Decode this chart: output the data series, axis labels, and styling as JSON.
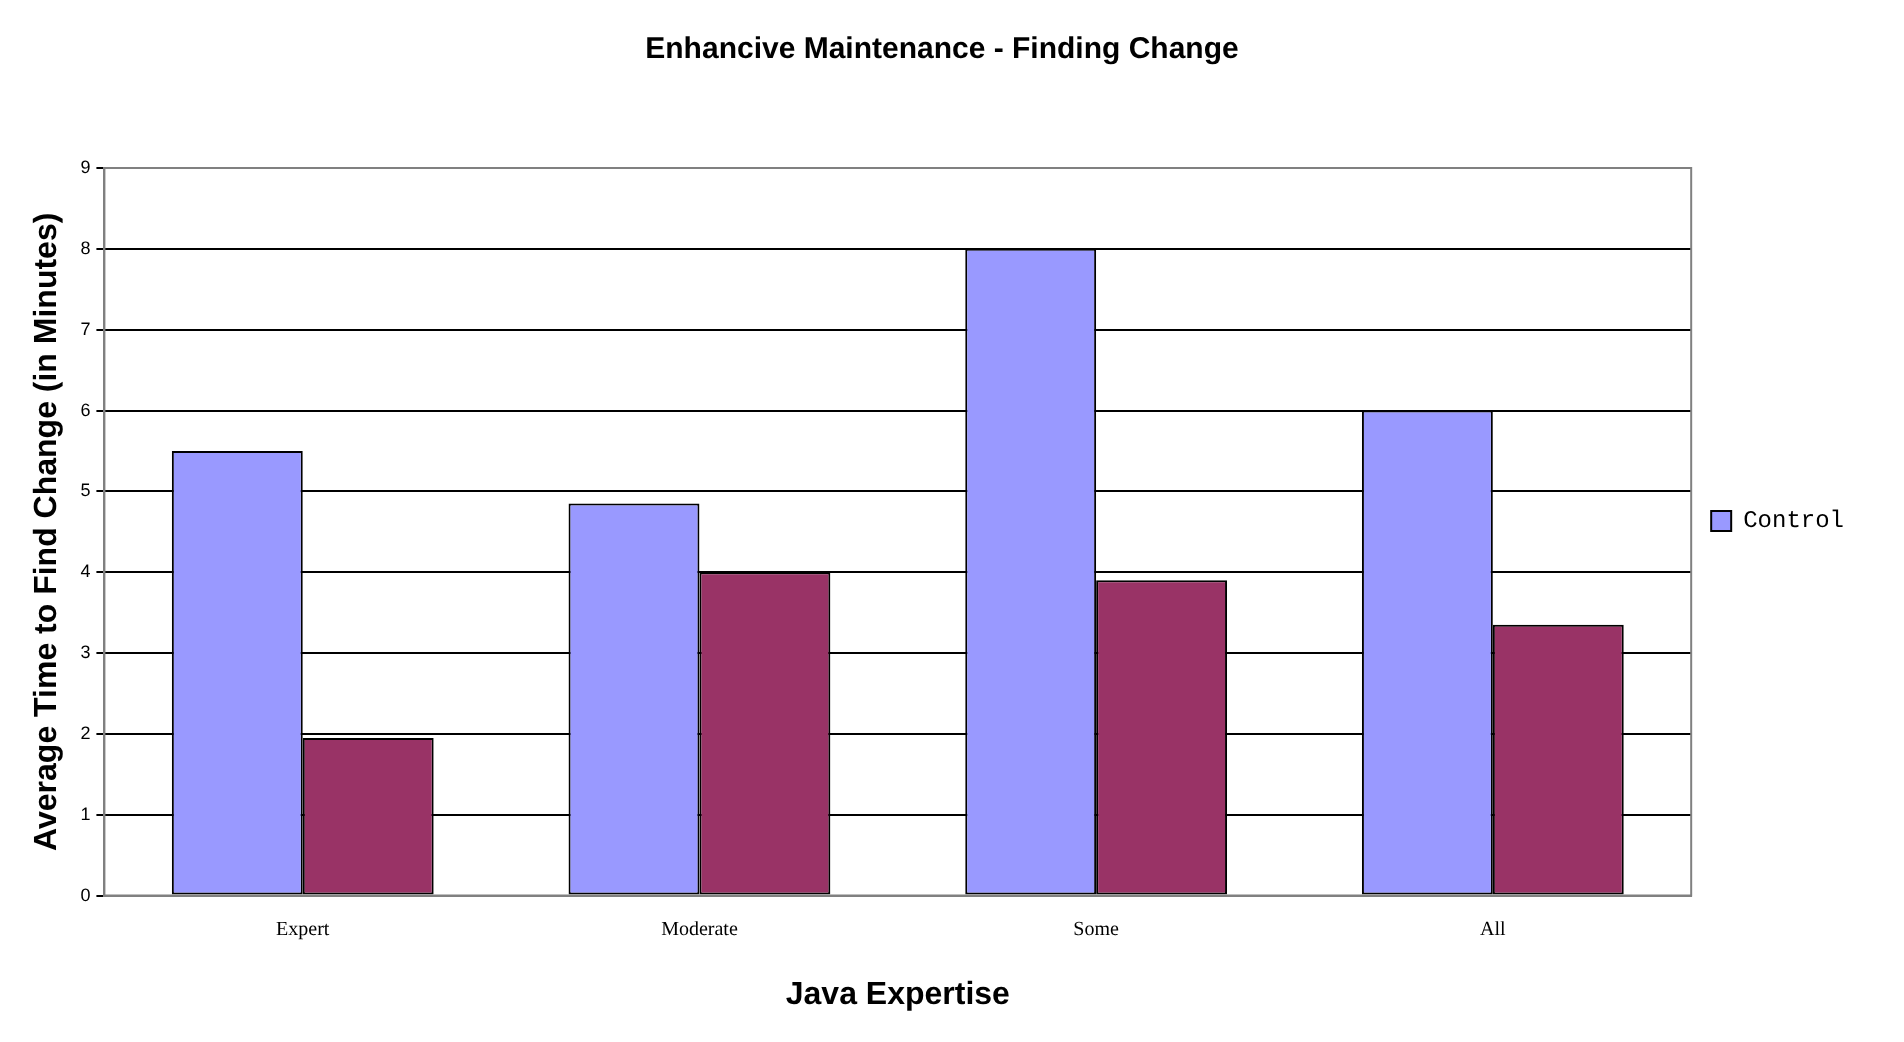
{
  "chart_data": {
    "type": "bar",
    "title": "Enhancive Maintenance - Finding Change",
    "xlabel": "Java Expertise",
    "ylabel": "Average Time to Find Change (in Minutes)",
    "categories": [
      "Expert",
      "Moderate",
      "Some",
      "All"
    ],
    "series": [
      {
        "name": "Control",
        "color": "#9999ff",
        "values": [
          5.5,
          4.85,
          8.0,
          6.0
        ]
      },
      {
        "color": "#993366",
        "values": [
          1.95,
          4.0,
          3.9,
          3.35
        ]
      }
    ],
    "ylim": [
      0,
      9
    ],
    "yticks": [
      0,
      1,
      2,
      3,
      4,
      5,
      6,
      7,
      8,
      9
    ],
    "grid": "y",
    "legend": "right"
  }
}
